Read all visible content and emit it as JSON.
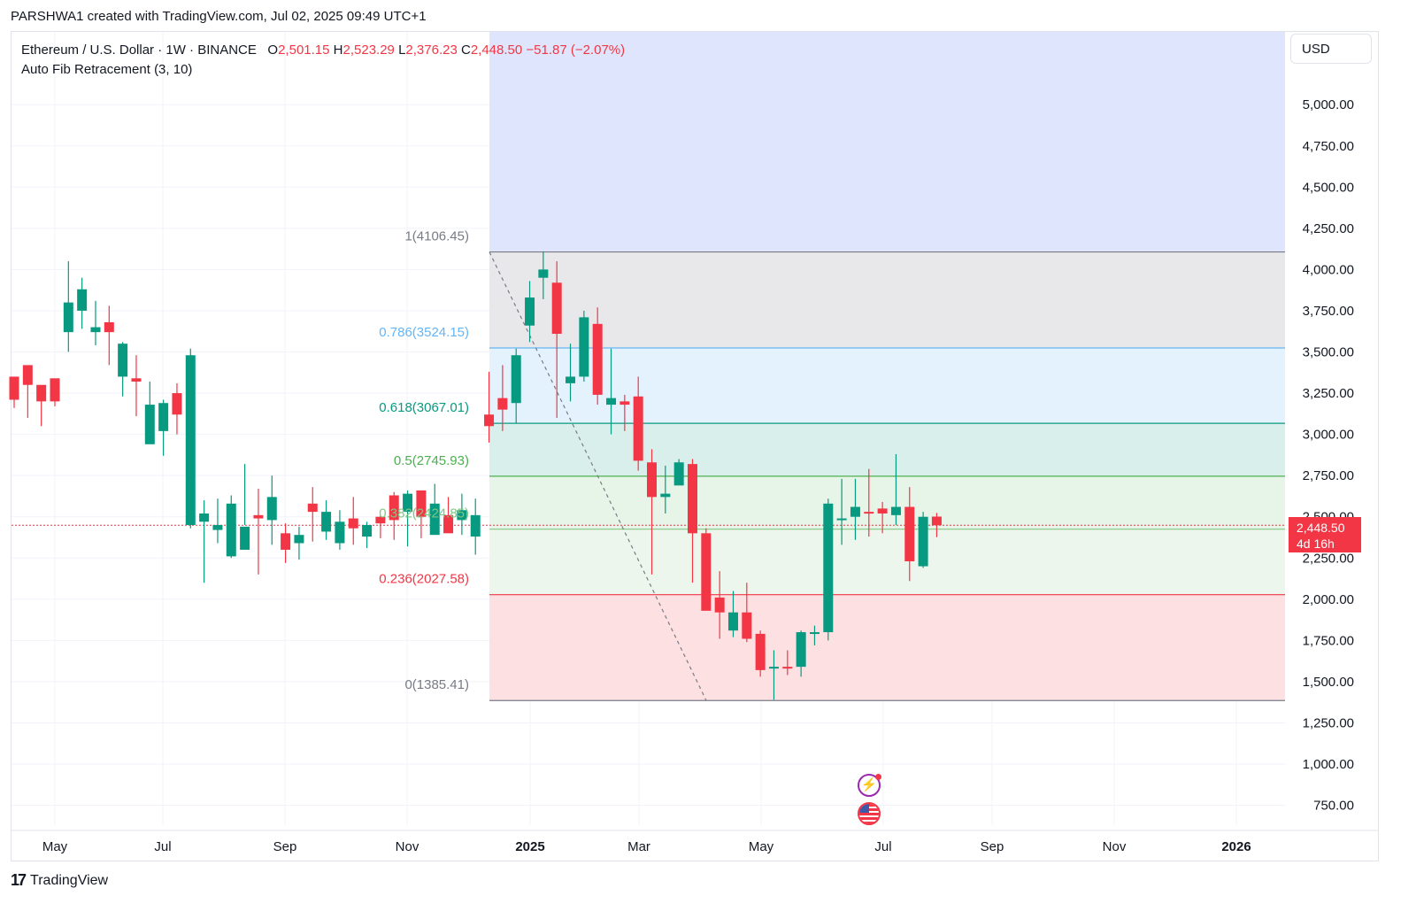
{
  "attribution": "PARSHWA1 created with TradingView.com, Jul 02, 2025 09:49 UTC+1",
  "legend": {
    "symbol": "Ethereum / U.S. Dollar · 1W · BINANCE",
    "o_label": "O",
    "o_value": "2,501.15",
    "h_label": "H",
    "h_value": "2,523.29",
    "l_label": "L",
    "l_value": "2,376.23",
    "c_label": "C",
    "c_value": "2,448.50",
    "change": "−51.87 (−2.07%)",
    "indicator": "Auto Fib Retracement (3, 10)"
  },
  "currency_button": "USD",
  "price_tag": {
    "price": "2,448.50",
    "countdown": "4d 16h"
  },
  "footer_brand": "TradingView",
  "colors": {
    "up": "#089981",
    "down": "#f23645",
    "grid": "#f0f3fa"
  },
  "icons": [
    "lightning-event-icon",
    "us-flag-event-icon"
  ],
  "chart_data": {
    "type": "candlestick",
    "y_axis_ticks": [
      "750.00",
      "1,000.00",
      "1,250.00",
      "1,500.00",
      "1,750.00",
      "2,000.00",
      "2,250.00",
      "2,500.00",
      "2,750.00",
      "3,000.00",
      "3,250.00",
      "3,500.00",
      "3,750.00",
      "4,000.00",
      "4,250.00",
      "4,500.00",
      "4,750.00",
      "5,000.00"
    ],
    "x_axis_ticks": [
      {
        "label": "May",
        "bold": false
      },
      {
        "label": "Jul",
        "bold": false
      },
      {
        "label": "Sep",
        "bold": false
      },
      {
        "label": "Nov",
        "bold": false
      },
      {
        "label": "2025",
        "bold": true
      },
      {
        "label": "Mar",
        "bold": false
      },
      {
        "label": "May",
        "bold": false
      },
      {
        "label": "Jul",
        "bold": false
      },
      {
        "label": "Sep",
        "bold": false
      },
      {
        "label": "Nov",
        "bold": false
      },
      {
        "label": "2026",
        "bold": true
      }
    ],
    "fib_levels": [
      {
        "label": "1(4106.45)",
        "price": 4106.45,
        "line": "#787b86",
        "fill": "#e8e8ea",
        "label_color": "#787b86"
      },
      {
        "label": "0.786(3524.15)",
        "price": 3524.15,
        "line": "#64b5f6",
        "fill": "#e3f2fd",
        "label_color": "#64b5f6"
      },
      {
        "label": "0.618(3067.01)",
        "price": 3067.01,
        "line": "#089981",
        "fill": "#d9efec",
        "label_color": "#089981"
      },
      {
        "label": "0.5(2745.93)",
        "price": 2745.93,
        "line": "#4caf50",
        "fill": "#e7f4e8",
        "label_color": "#4caf50"
      },
      {
        "label": "0.382(2424.85)",
        "price": 2424.85,
        "line": "#81c784",
        "fill": "#ecf6ed",
        "label_color": "#81c784"
      },
      {
        "label": "0.236(2027.58)",
        "price": 2027.58,
        "line": "#f23645",
        "fill": "#fde0e2",
        "label_color": "#f23645"
      },
      {
        "label": "0(1385.41)",
        "price": 1385.41,
        "line": "#787b86",
        "fill": null,
        "label_color": "#787b86"
      }
    ],
    "extension_zone_color": "#dfe5fd",
    "current_price": 2448.5,
    "candles": [
      [
        3350,
        3210,
        3220,
        3160
      ],
      [
        3420,
        3300,
        3350,
        3100
      ],
      [
        3300,
        3200,
        3210,
        3050
      ],
      [
        3340,
        3200,
        3300,
        3170
      ],
      [
        3620,
        3800,
        4050,
        3500
      ],
      [
        3750,
        3880,
        3950,
        3640
      ],
      [
        3620,
        3650,
        3810,
        3540
      ],
      [
        3680,
        3620,
        3780,
        3420
      ],
      [
        3350,
        3550,
        3560,
        3230
      ],
      [
        3340,
        3320,
        3480,
        3110
      ],
      [
        2940,
        3180,
        3320,
        2950
      ],
      [
        3020,
        3190,
        3210,
        2870
      ],
      [
        3250,
        3120,
        3310,
        3000
      ],
      [
        2450,
        3480,
        3520,
        2430
      ],
      [
        2470,
        2520,
        2600,
        2100
      ],
      [
        2420,
        2450,
        2610,
        2340
      ],
      [
        2260,
        2580,
        2630,
        2250
      ],
      [
        2300,
        2440,
        2820,
        2450
      ],
      [
        2510,
        2490,
        2670,
        2150
      ],
      [
        2480,
        2620,
        2750,
        2330
      ],
      [
        2400,
        2300,
        2460,
        2220
      ],
      [
        2340,
        2390,
        2440,
        2240
      ],
      [
        2580,
        2530,
        2680,
        2350
      ],
      [
        2410,
        2530,
        2600,
        2360
      ],
      [
        2340,
        2470,
        2540,
        2300
      ],
      [
        2490,
        2430,
        2620,
        2330
      ],
      [
        2380,
        2450,
        2470,
        2310
      ],
      [
        2500,
        2460,
        2510,
        2370
      ],
      [
        2630,
        2480,
        2650,
        2360
      ],
      [
        2530,
        2640,
        2660,
        2320
      ],
      [
        2660,
        2500,
        2650,
        2370
      ],
      [
        2390,
        2580,
        2700,
        2400
      ],
      [
        2510,
        2400,
        2620,
        2420
      ],
      [
        2480,
        2540,
        2640,
        2390
      ],
      [
        2380,
        2510,
        2610,
        2270
      ],
      [
        3120,
        3050,
        3380,
        2950
      ],
      [
        3220,
        3150,
        3420,
        3020
      ],
      [
        3190,
        3480,
        3520,
        3070
      ],
      [
        3660,
        3830,
        3930,
        3560
      ],
      [
        3950,
        4000,
        4110,
        3820
      ],
      [
        3920,
        3610,
        4050,
        3100
      ],
      [
        3310,
        3350,
        3550,
        3200
      ],
      [
        3350,
        3710,
        3750,
        3320
      ],
      [
        3670,
        3240,
        3770,
        3180
      ],
      [
        3180,
        3220,
        3520,
        3000
      ],
      [
        3200,
        3180,
        3240,
        3020
      ],
      [
        3230,
        2840,
        3350,
        2780
      ],
      [
        2830,
        2620,
        2910,
        2150
      ],
      [
        2620,
        2640,
        2810,
        2520
      ],
      [
        2690,
        2830,
        2850,
        2700
      ],
      [
        2820,
        2400,
        2850,
        2100
      ],
      [
        2400,
        1930,
        2430,
        2000
      ],
      [
        2010,
        1920,
        2170,
        1760
      ],
      [
        1810,
        1920,
        2050,
        1770
      ],
      [
        1920,
        1760,
        2100,
        1740
      ],
      [
        1790,
        1570,
        1810,
        1530
      ],
      [
        1580,
        1590,
        1690,
        1390
      ],
      [
        1590,
        1580,
        1690,
        1540
      ],
      [
        1590,
        1800,
        1810,
        1530
      ],
      [
        1790,
        1800,
        1840,
        1720
      ],
      [
        1800,
        2580,
        2610,
        1750
      ],
      [
        2480,
        2490,
        2730,
        2330
      ],
      [
        2500,
        2560,
        2730,
        2360
      ],
      [
        2530,
        2520,
        2790,
        2380
      ],
      [
        2550,
        2520,
        2590,
        2400
      ],
      [
        2510,
        2560,
        2880,
        2450
      ],
      [
        2560,
        2230,
        2680,
        2110
      ],
      [
        2200,
        2500,
        2530,
        2190
      ],
      [
        2501.15,
        2448.5,
        2523.29,
        2376.23
      ]
    ]
  }
}
